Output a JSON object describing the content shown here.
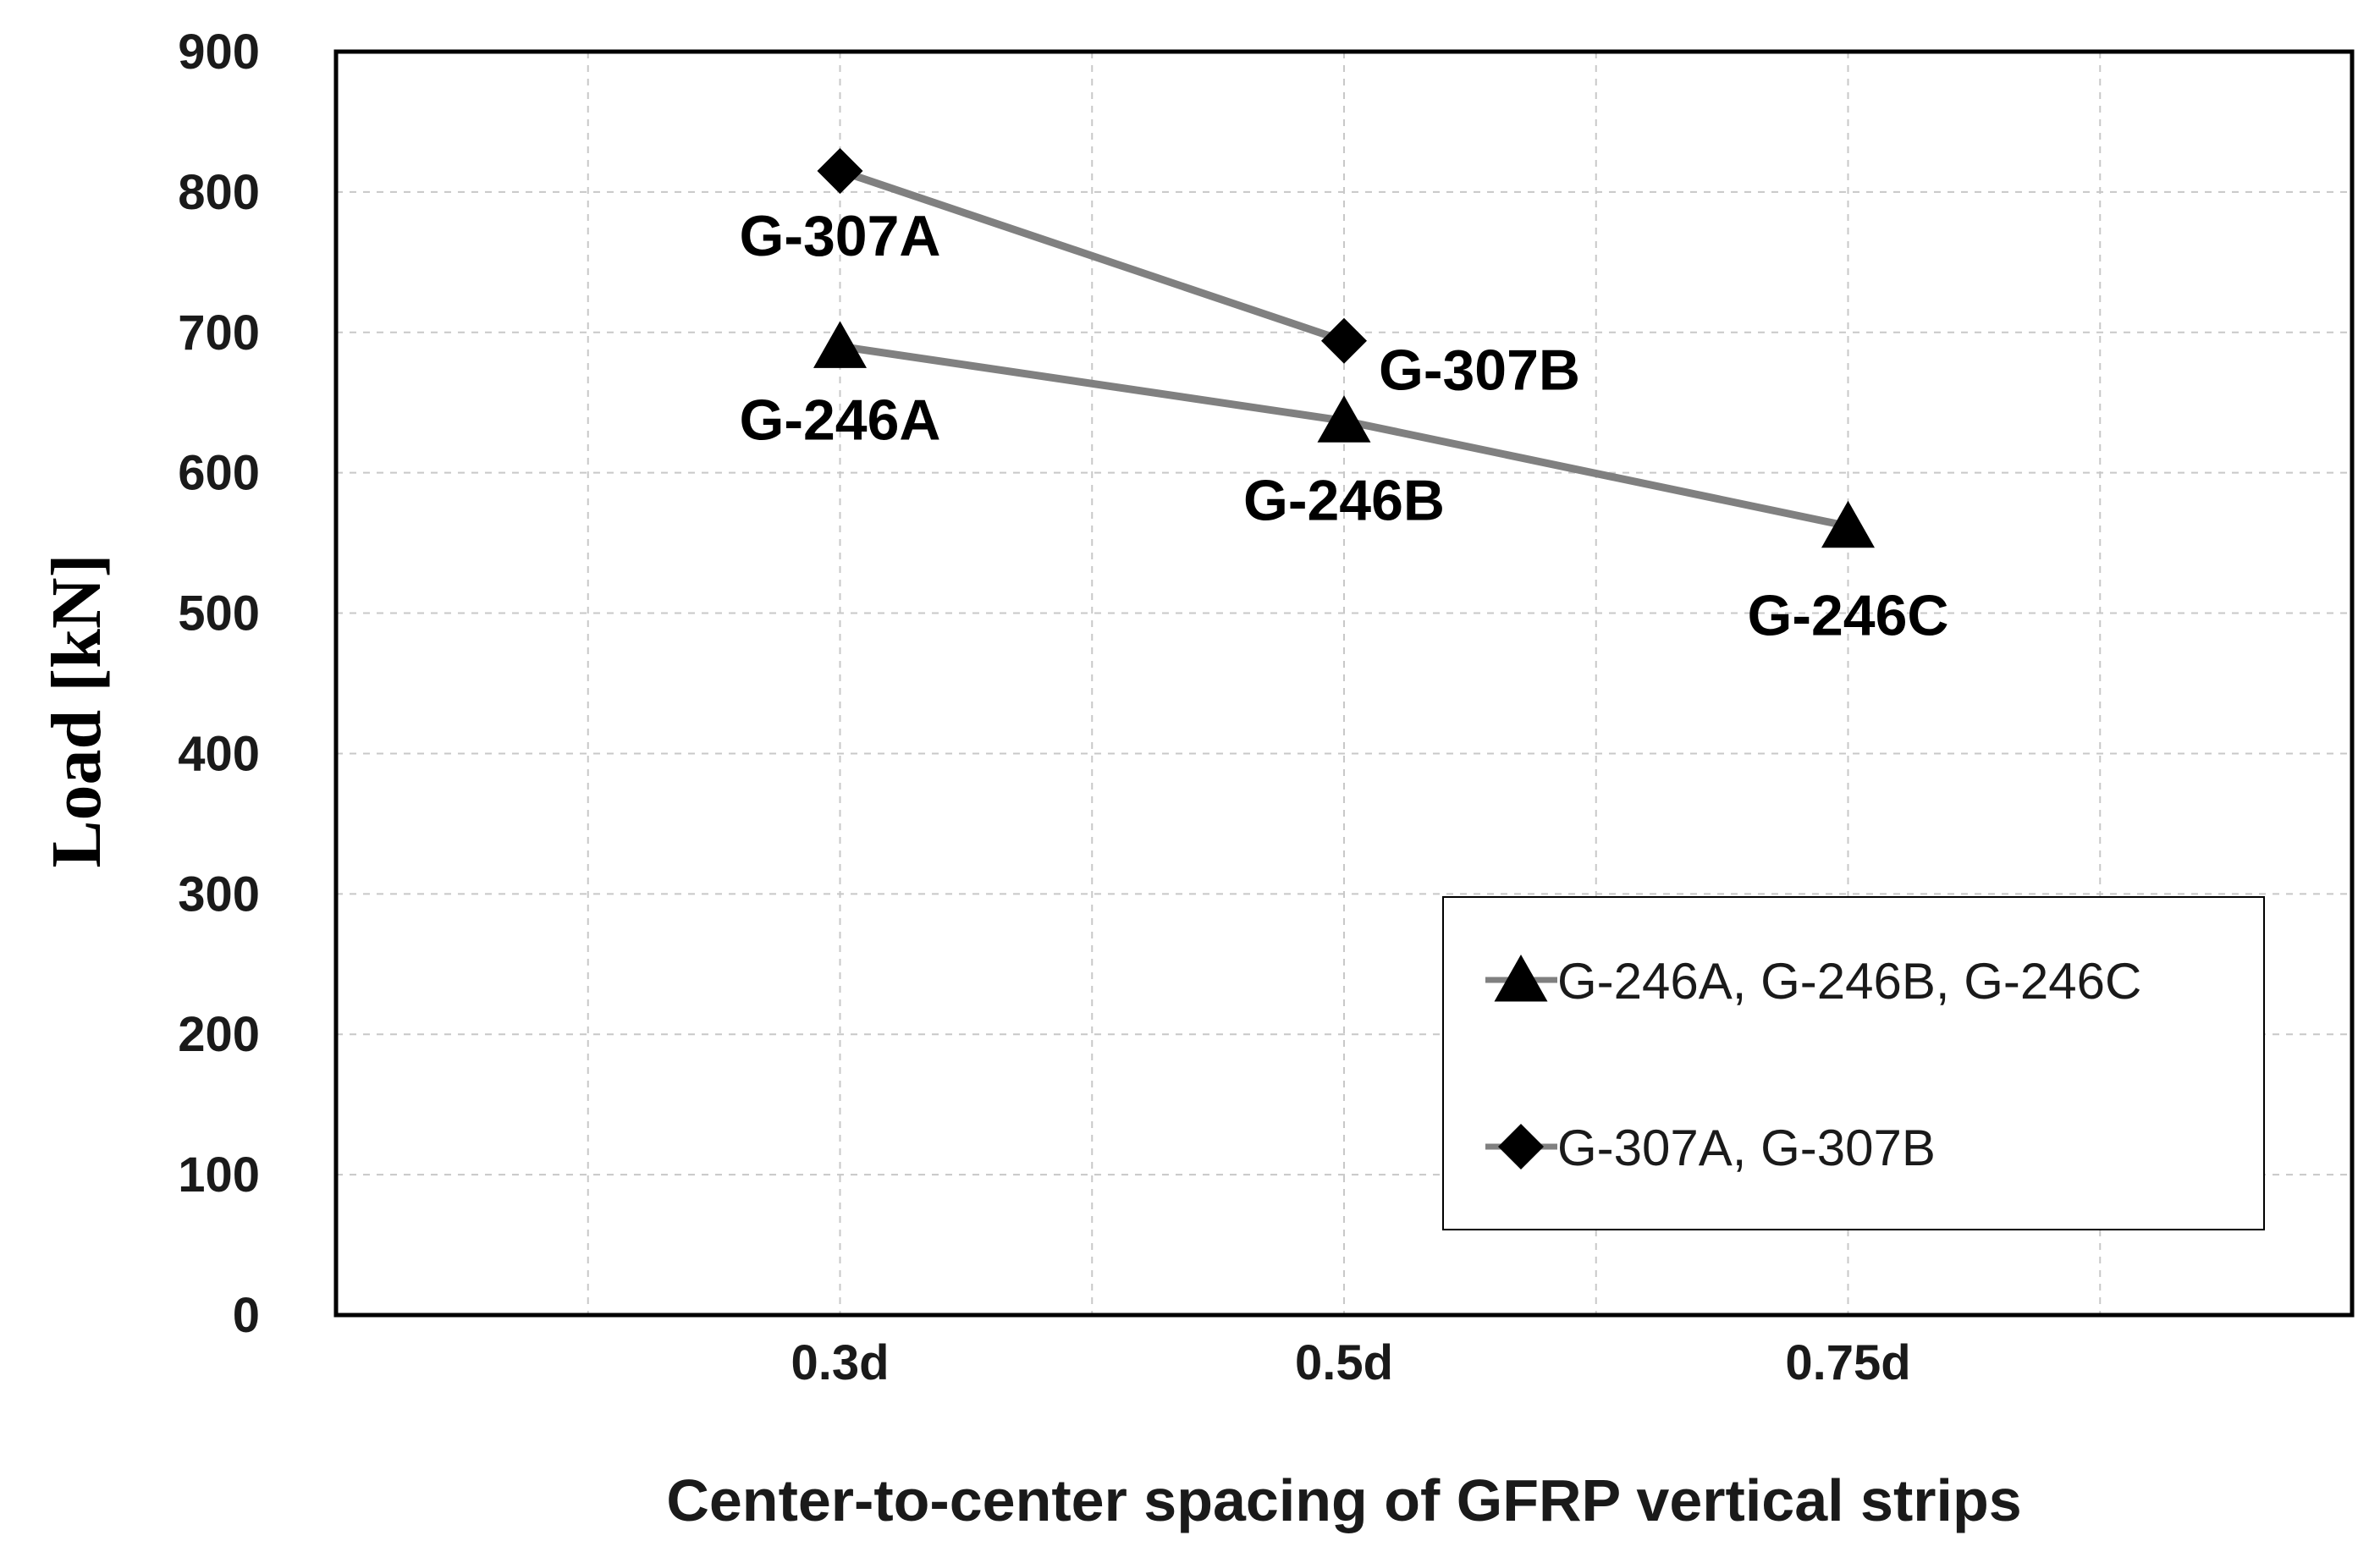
{
  "chart_data": {
    "type": "line",
    "title": "",
    "xlabel": "Center-to-center spacing of GFRP vertical strips",
    "ylabel": "Load [kN]",
    "categories": [
      "0.3d",
      "0.5d",
      "0.75d"
    ],
    "ylim": [
      0,
      900
    ],
    "yticks": [
      0,
      100,
      200,
      300,
      400,
      500,
      600,
      700,
      800,
      900
    ],
    "grid": true,
    "legend_position": "bottom-right",
    "line_color": "#808080",
    "marker_color": "#000000",
    "series": [
      {
        "name": "G-246A, G-246B, G-246C",
        "marker": "triangle",
        "values": [
          690,
          637,
          562
        ],
        "point_labels": [
          "G-246A",
          "G-246B",
          "G-246C"
        ]
      },
      {
        "name": "G-307A, G-307B",
        "marker": "diamond",
        "values": [
          815,
          694,
          null
        ],
        "point_labels": [
          "G-307A",
          "G-307B",
          null
        ]
      }
    ]
  }
}
